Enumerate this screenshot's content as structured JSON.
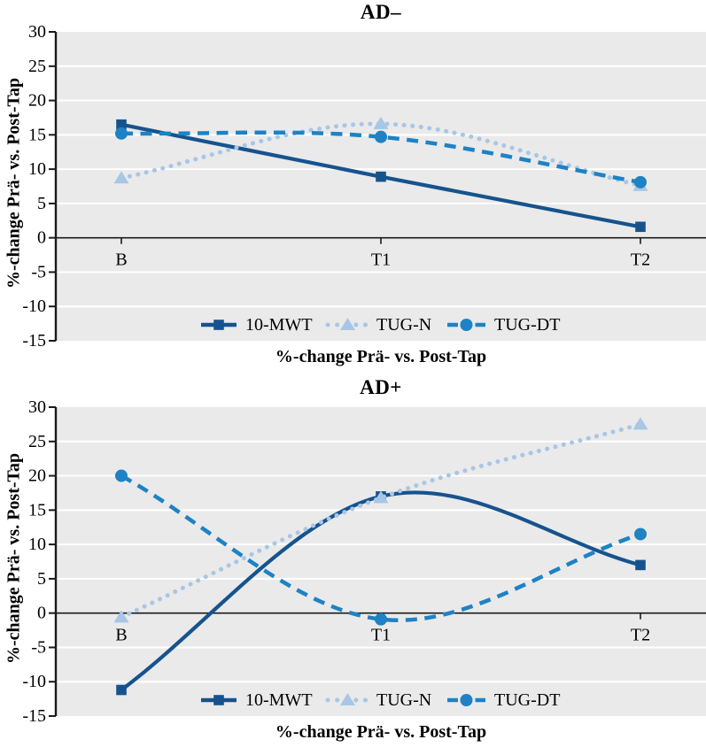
{
  "styles": {
    "plot_background": "#eaeaea",
    "grid_color": "#ffffff",
    "axis_color": "#1a1a1a",
    "text_color": "#000000",
    "series_colors": {
      "10-MWT": "#16538e",
      "TUG-N": "#a8c6e6",
      "TUG-DT": "#1e82c4"
    }
  },
  "chart_data": [
    {
      "type": "line",
      "title": "AD–",
      "xlabel": "%-change Prä- vs. Post-Tap",
      "ylabel": "%-change Prä- vs. Post-Tap",
      "categories": [
        "B",
        "T1",
        "T2"
      ],
      "ylim": [
        -15,
        30
      ],
      "yticks": [
        30,
        25,
        20,
        15,
        10,
        5,
        0,
        -5,
        -10,
        -15
      ],
      "grid": "horizontal white lines on gray panel",
      "legend_position": "inside-bottom-center",
      "series": [
        {
          "name": "10-MWT",
          "values": [
            16.5,
            8.9,
            1.6
          ],
          "line": "solid",
          "marker": "square",
          "color": "#16538e"
        },
        {
          "name": "TUG-N",
          "values": [
            8.7,
            16.6,
            7.6
          ],
          "line": "dotted",
          "marker": "triangle",
          "color": "#a8c6e6"
        },
        {
          "name": "TUG-DT",
          "values": [
            15.2,
            14.7,
            8.1
          ],
          "line": "dashed",
          "marker": "circle",
          "color": "#1e82c4"
        }
      ]
    },
    {
      "type": "line",
      "title": "AD+",
      "xlabel": "%-change Prä- vs. Post-Tap",
      "ylabel": "%-change Prä- vs. Post-Tap",
      "categories": [
        "B",
        "T1",
        "T2"
      ],
      "ylim": [
        -15,
        30
      ],
      "yticks": [
        30,
        25,
        20,
        15,
        10,
        5,
        0,
        -5,
        -10,
        -15
      ],
      "grid": "horizontal white lines on gray panel",
      "legend_position": "inside-bottom-center",
      "series": [
        {
          "name": "10-MWT",
          "values": [
            -11.2,
            17.0,
            7.0
          ],
          "line": "solid",
          "marker": "square",
          "color": "#16538e"
        },
        {
          "name": "TUG-N",
          "values": [
            -0.6,
            16.8,
            27.5
          ],
          "line": "dotted",
          "marker": "triangle",
          "color": "#a8c6e6"
        },
        {
          "name": "TUG-DT",
          "values": [
            20.0,
            -0.9,
            11.5
          ],
          "line": "dashed",
          "marker": "circle",
          "color": "#1e82c4"
        }
      ]
    }
  ]
}
